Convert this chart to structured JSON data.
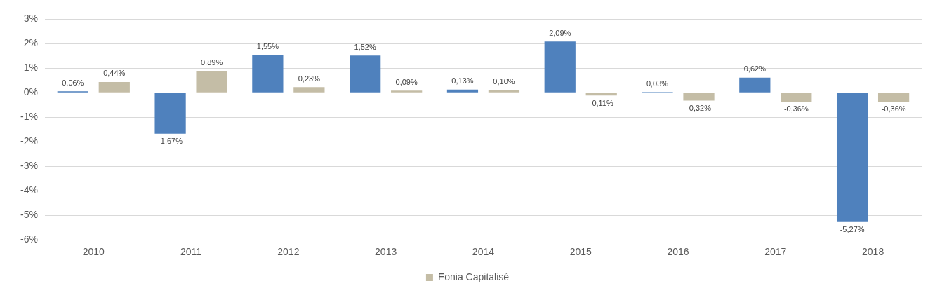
{
  "chart_data": {
    "type": "bar",
    "categories": [
      "2010",
      "2011",
      "2012",
      "2013",
      "2014",
      "2015",
      "2016",
      "2017",
      "2018"
    ],
    "series": [
      {
        "color": "#4f81bd",
        "values": [
          0.06,
          -1.67,
          1.55,
          1.52,
          0.13,
          2.09,
          0.03,
          0.62,
          -5.27
        ],
        "value_labels": [
          "0,06%",
          "-1,67%",
          "1,55%",
          "1,52%",
          "0,13%",
          "2,09%",
          "0,03%",
          "0,62%",
          "-5,27%"
        ]
      },
      {
        "name": "Eonia Capitalisé",
        "color": "#c4bda6",
        "values": [
          0.44,
          0.89,
          0.23,
          0.09,
          0.1,
          -0.11,
          -0.32,
          -0.36,
          -0.36
        ],
        "value_labels": [
          "0,44%",
          "0,89%",
          "0,23%",
          "0,09%",
          "0,10%",
          "-0,11%",
          "-0,32%",
          "-0,36%",
          "-0,36%"
        ]
      }
    ],
    "ylim": [
      -6,
      3
    ],
    "yticks": [
      {
        "value": -6,
        "label": "-6%"
      },
      {
        "value": -5,
        "label": "-5%"
      },
      {
        "value": -4,
        "label": "-4%"
      },
      {
        "value": -3,
        "label": "-3%"
      },
      {
        "value": -2,
        "label": "-2%"
      },
      {
        "value": -1,
        "label": "-1%"
      },
      {
        "value": 0,
        "label": "0%"
      },
      {
        "value": 1,
        "label": "1%"
      },
      {
        "value": 2,
        "label": "2%"
      },
      {
        "value": 3,
        "label": "3%"
      }
    ],
    "grid": "y",
    "legend": "bottom"
  }
}
